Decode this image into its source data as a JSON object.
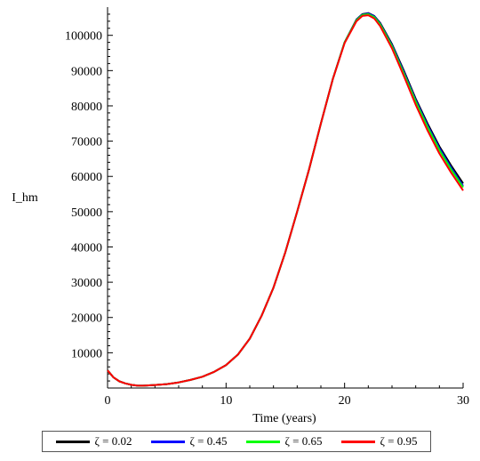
{
  "chart_data": {
    "type": "line",
    "title": "",
    "xlabel": "Time (years)",
    "ylabel": "I_hm",
    "xlim": [
      0,
      30
    ],
    "ylim": [
      0,
      108000
    ],
    "xticks": [
      0,
      10,
      20,
      30
    ],
    "xtick_labels": [
      "0",
      "10",
      "20",
      "30"
    ],
    "yticks": [
      10000,
      20000,
      30000,
      40000,
      50000,
      60000,
      70000,
      80000,
      90000,
      100000
    ],
    "ytick_labels": [
      "10000",
      "20000",
      "30000",
      "40000",
      "50000",
      "60000",
      "70000",
      "80000",
      "90000",
      "100000"
    ],
    "grid": false,
    "legend_position": "bottom",
    "x": [
      0,
      0.5,
      1,
      1.5,
      2,
      2.5,
      3,
      4,
      5,
      6,
      7,
      8,
      9,
      10,
      11,
      12,
      13,
      14,
      15,
      16,
      17,
      18,
      19,
      20,
      21,
      21.5,
      22,
      22.5,
      23,
      24,
      25,
      26,
      27,
      28,
      29,
      30
    ],
    "series": [
      {
        "name": "ζ = 0.02",
        "color": "#000000",
        "values": [
          5000,
          3000,
          1900,
          1300,
          900,
          700,
          650,
          850,
          1100,
          1600,
          2300,
          3200,
          4600,
          6500,
          9500,
          14000,
          20500,
          28500,
          38500,
          50000,
          62000,
          75000,
          87500,
          98000,
          104500,
          106000,
          106300,
          105500,
          103500,
          97500,
          90000,
          82000,
          75000,
          68500,
          63000,
          58000
        ]
      },
      {
        "name": "ζ = 0.45",
        "color": "#0000ff",
        "values": [
          5000,
          3000,
          1900,
          1300,
          900,
          700,
          650,
          850,
          1100,
          1600,
          2300,
          3200,
          4600,
          6500,
          9500,
          14000,
          20500,
          28500,
          38500,
          50000,
          62000,
          75000,
          87500,
          98000,
          104400,
          105900,
          106200,
          105400,
          103300,
          97200,
          89600,
          81600,
          74500,
          68000,
          62400,
          57300
        ]
      },
      {
        "name": "ζ = 0.65",
        "color": "#00ff00",
        "values": [
          5000,
          3000,
          1900,
          1300,
          900,
          700,
          650,
          850,
          1100,
          1600,
          2300,
          3200,
          4600,
          6500,
          9500,
          14000,
          20500,
          28500,
          38500,
          50000,
          62000,
          75000,
          87500,
          98000,
          104300,
          105800,
          106000,
          105200,
          103100,
          96900,
          89200,
          81200,
          74000,
          67500,
          61900,
          56900
        ]
      },
      {
        "name": "ζ = 0.95",
        "color": "#ff0000",
        "values": [
          5000,
          3000,
          1900,
          1300,
          900,
          700,
          650,
          850,
          1100,
          1600,
          2300,
          3200,
          4600,
          6500,
          9500,
          14000,
          20500,
          28500,
          38500,
          50000,
          62000,
          75000,
          87500,
          97800,
          104000,
          105500,
          105700,
          104800,
          102600,
          96300,
          88500,
          80300,
          73000,
          66500,
          61000,
          56000
        ]
      }
    ]
  }
}
